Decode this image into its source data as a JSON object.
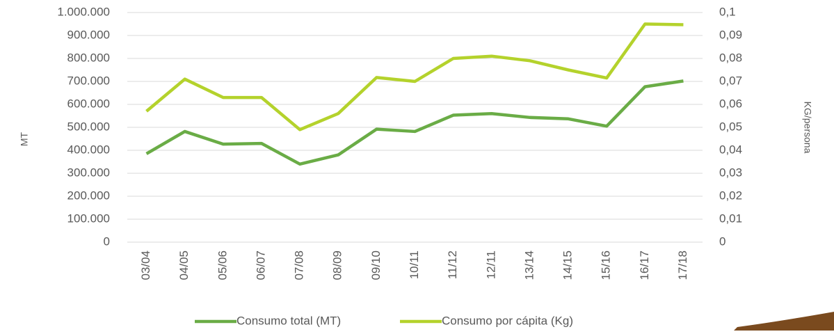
{
  "chart_data": {
    "type": "line",
    "categories": [
      "03/04",
      "04/05",
      "05/06",
      "06/07",
      "07/08",
      "08/09",
      "09/10",
      "10/11",
      "11/12",
      "12/11",
      "13/14",
      "14/15",
      "15/16",
      "16/17",
      "17/18"
    ],
    "series": [
      {
        "name": "Consumo total (MT)",
        "color": "#6aac46",
        "values": [
          385000,
          482000,
          427000,
          430000,
          340000,
          380000,
          492000,
          482000,
          553000,
          560000,
          543000,
          537000,
          505000,
          677000,
          702000
        ]
      },
      {
        "name": "Consumo por cápita (Kg)",
        "color": "#b4d22c",
        "axis": "y2",
        "values": [
          0.057,
          0.071,
          0.063,
          0.063,
          0.049,
          0.056,
          0.0717,
          0.07,
          0.08,
          0.081,
          0.079,
          0.075,
          0.0715,
          0.095,
          0.0947
        ]
      }
    ],
    "ylabel": "MT",
    "y2label": "KG/persona",
    "ylim": [
      0,
      1000000
    ],
    "yticks": [
      0,
      {
        "value": 100000,
        "label": "100.000"
      },
      {
        "value": 200000,
        "label": "200.000"
      },
      {
        "value": 300000,
        "label": "300.000"
      },
      {
        "value": 400000,
        "label": "400.000"
      },
      {
        "value": 500000,
        "label": "500.000"
      },
      {
        "value": 600000,
        "label": "600.000"
      },
      {
        "value": 700000,
        "label": "700.000"
      },
      {
        "value": 800000,
        "label": "800.000"
      },
      {
        "value": 900000,
        "label": "900.000"
      },
      {
        "value": 1000000,
        "label": "1.000.000"
      }
    ],
    "y2lim": [
      0,
      0.1
    ],
    "y2ticks": [
      0,
      {
        "value": 0.01,
        "label": "0,01"
      },
      {
        "value": 0.02,
        "label": "0,02"
      },
      {
        "value": 0.03,
        "label": "0,03"
      },
      {
        "value": 0.04,
        "label": "0,04"
      },
      {
        "value": 0.05,
        "label": "0,05"
      },
      {
        "value": 0.06,
        "label": "0,06"
      },
      {
        "value": 0.07,
        "label": "0,07"
      },
      {
        "value": 0.08,
        "label": "0,08"
      },
      {
        "value": 0.09,
        "label": "0,09"
      },
      {
        "value": 0.1,
        "label": "0,1"
      }
    ],
    "grid": true,
    "legend": "bottom"
  }
}
